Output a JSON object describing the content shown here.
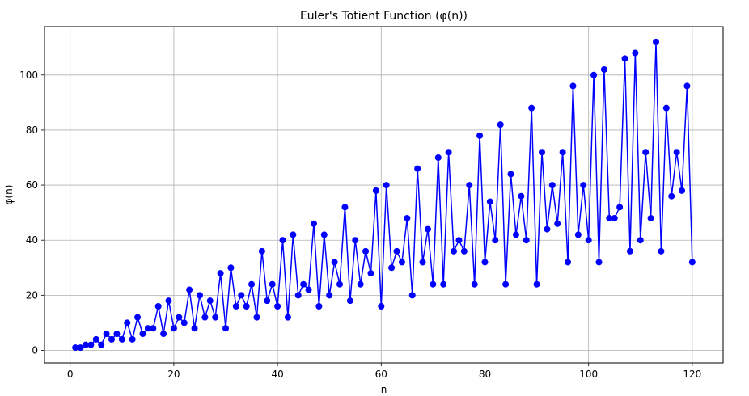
{
  "chart_data": {
    "type": "line",
    "title": "Euler's Totient Function (φ(n))",
    "xlabel": "n",
    "ylabel": "φ(n)",
    "xlim": [
      -4.95,
      125.95
    ],
    "ylim": [
      -4.55,
      117.55
    ],
    "xticks": [
      0,
      20,
      40,
      60,
      80,
      100,
      120
    ],
    "yticks": [
      0,
      20,
      40,
      60,
      80,
      100
    ],
    "grid": true,
    "legend": "none",
    "series": [
      {
        "color": "#0000ff",
        "marker": "circle",
        "x": [
          1,
          2,
          3,
          4,
          5,
          6,
          7,
          8,
          9,
          10,
          11,
          12,
          13,
          14,
          15,
          16,
          17,
          18,
          19,
          20,
          21,
          22,
          23,
          24,
          25,
          26,
          27,
          28,
          29,
          30,
          31,
          32,
          33,
          34,
          35,
          36,
          37,
          38,
          39,
          40,
          41,
          42,
          43,
          44,
          45,
          46,
          47,
          48,
          49,
          50,
          51,
          52,
          53,
          54,
          55,
          56,
          57,
          58,
          59,
          60,
          61,
          62,
          63,
          64,
          65,
          66,
          67,
          68,
          69,
          70,
          71,
          72,
          73,
          74,
          75,
          76,
          77,
          78,
          79,
          80,
          81,
          82,
          83,
          84,
          85,
          86,
          87,
          88,
          89,
          90,
          91,
          92,
          93,
          94,
          95,
          96,
          97,
          98,
          99,
          100,
          101,
          102,
          103,
          104,
          105,
          106,
          107,
          108,
          109,
          110,
          111,
          112,
          113,
          114,
          115,
          116,
          117,
          118,
          119,
          120
        ],
        "y": [
          1,
          1,
          2,
          2,
          4,
          2,
          6,
          4,
          6,
          4,
          10,
          4,
          12,
          6,
          8,
          8,
          16,
          6,
          18,
          8,
          12,
          10,
          22,
          8,
          20,
          12,
          18,
          12,
          28,
          8,
          30,
          16,
          20,
          16,
          24,
          12,
          36,
          18,
          24,
          16,
          40,
          12,
          42,
          20,
          24,
          22,
          46,
          16,
          42,
          20,
          32,
          24,
          52,
          18,
          40,
          24,
          36,
          28,
          58,
          16,
          60,
          30,
          36,
          32,
          48,
          20,
          66,
          32,
          44,
          24,
          70,
          24,
          72,
          36,
          40,
          36,
          60,
          24,
          78,
          32,
          54,
          40,
          82,
          24,
          64,
          42,
          56,
          40,
          88,
          24,
          72,
          44,
          60,
          46,
          72,
          32,
          96,
          42,
          60,
          40,
          100,
          32,
          102,
          48,
          48,
          52,
          106,
          36,
          108,
          40,
          72,
          48,
          112,
          36,
          88,
          56,
          72,
          58,
          96,
          32
        ]
      }
    ]
  }
}
